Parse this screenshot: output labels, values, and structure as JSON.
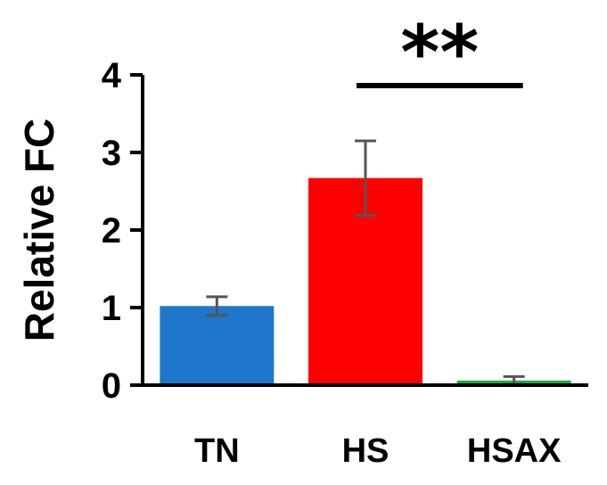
{
  "chart_data": {
    "type": "bar",
    "title": "",
    "xlabel": "",
    "ylabel": "Relative FC",
    "ylim": [
      0,
      4
    ],
    "yticks": [
      "0",
      "1",
      "2",
      "3",
      "4"
    ],
    "categories": [
      "TN",
      "HS",
      "HSAX"
    ],
    "values": [
      1.02,
      2.67,
      0.06
    ],
    "errors": [
      0.12,
      0.48,
      0.05
    ],
    "colors": [
      "#1f77cc",
      "#ff0000",
      "#22aa44"
    ],
    "grid": false,
    "annotation": {
      "text": "**",
      "from_category": "HS",
      "to_category": "HSAX"
    }
  }
}
